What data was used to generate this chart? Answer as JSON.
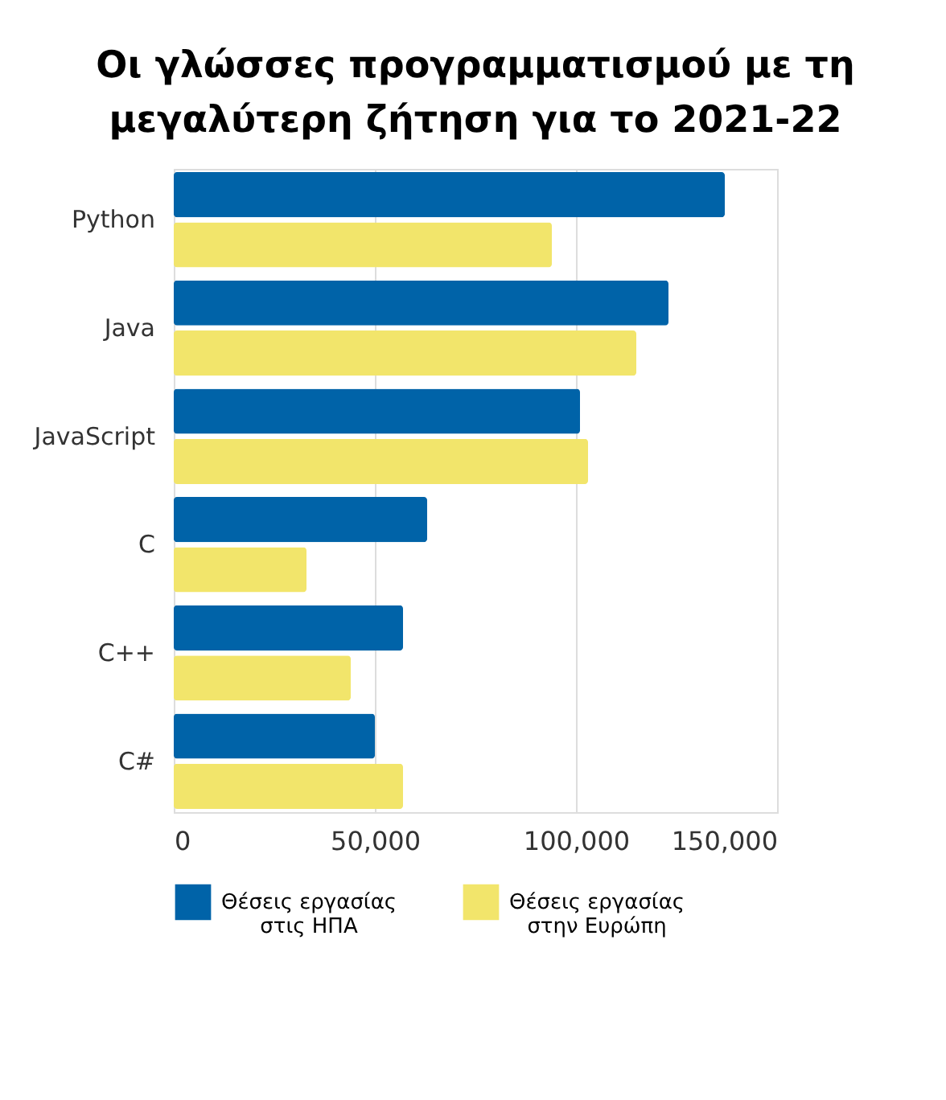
{
  "chart_data": {
    "type": "bar",
    "orientation": "horizontal",
    "title": "Οι γλώσσες προγραμματισμού με τη μεγαλύτερη ζήτηση για το 2021-22",
    "categories": [
      "Python",
      "Java",
      "JavaScript",
      "C",
      "C++",
      "C#"
    ],
    "series": [
      {
        "name": "Θέσεις εργασίας στις ΗΠΑ",
        "color": "#0063a8",
        "values": [
          137000,
          123000,
          101000,
          63000,
          57000,
          50000
        ]
      },
      {
        "name": "Θέσεις εργασίας στην Ευρώπη",
        "color": "#f2e56b",
        "values": [
          94000,
          115000,
          103000,
          33000,
          44000,
          57000
        ]
      }
    ],
    "xlim": [
      0,
      150000
    ],
    "xticks": [
      {
        "value": 0,
        "label": "0"
      },
      {
        "value": 50000,
        "label": "50,000"
      },
      {
        "value": 100000,
        "label": "100,000"
      },
      {
        "value": 150000,
        "label": "150,000"
      }
    ],
    "grid": "x",
    "legend": "bottom"
  }
}
